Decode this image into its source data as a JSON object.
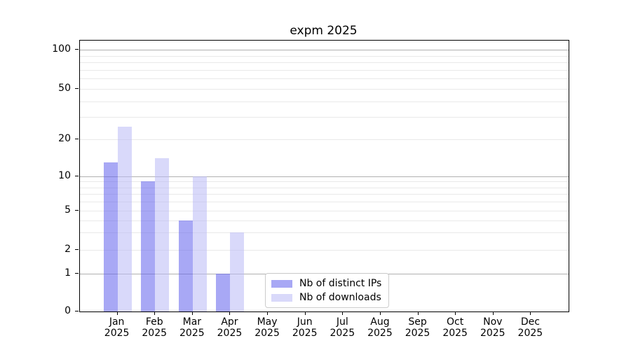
{
  "chart_data": {
    "type": "bar",
    "title": "expm 2025",
    "categories": [
      "Jan",
      "Feb",
      "Mar",
      "Apr",
      "May",
      "Jun",
      "Jul",
      "Aug",
      "Sep",
      "Oct",
      "Nov",
      "Dec"
    ],
    "category_year": "2025",
    "series": [
      {
        "name": "Nb of distinct IPs",
        "color": "rgba(97,97,237,0.55)",
        "values": [
          13,
          9,
          4,
          1,
          0,
          0,
          0,
          0,
          0,
          0,
          0,
          0
        ]
      },
      {
        "name": "Nb of downloads",
        "color": "rgba(186,186,246,0.55)",
        "values": [
          25,
          14,
          10,
          3,
          0,
          0,
          0,
          0,
          0,
          0,
          0,
          0
        ]
      }
    ],
    "xlabel": "",
    "ylabel": "",
    "y_ticks": [
      0,
      1,
      2,
      5,
      10,
      20,
      50,
      100
    ],
    "y_major_gridlines": [
      1,
      10,
      100
    ],
    "y_minor_gridlines": [
      2,
      3,
      4,
      5,
      6,
      7,
      8,
      9,
      20,
      30,
      40,
      50,
      60,
      70,
      80,
      90
    ],
    "ylim": [
      0,
      115
    ],
    "scale": "log-like (0,1,2,5,10,20,50,100)",
    "grid": "on",
    "legend": {
      "position": "inside, lower middle",
      "entries": [
        "Nb of distinct IPs",
        "Nb of downloads"
      ]
    },
    "colors": {
      "bar_distinct_ips": "#a8a8f5",
      "bar_downloads": "#d9d9fa",
      "major_gridline": "#b1b1b1",
      "minor_gridline": "#e9e9e9",
      "axis": "#000000"
    }
  }
}
